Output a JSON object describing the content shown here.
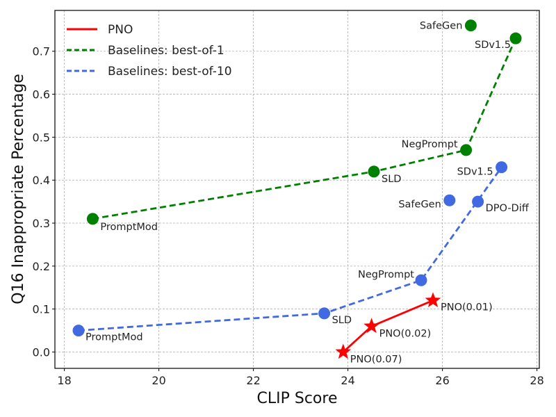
{
  "chart_data": {
    "type": "scatter",
    "xlabel": "CLIP Score",
    "ylabel": "Q16 Inappropriate Percentage",
    "xlim": [
      17.8,
      28.05
    ],
    "ylim": [
      -0.038,
      0.795
    ],
    "xticks": [
      18,
      20,
      22,
      24,
      26,
      28
    ],
    "xtick_labels": [
      "18",
      "20",
      "22",
      "24",
      "26",
      "28"
    ],
    "yticks": [
      0.0,
      0.1,
      0.2,
      0.3,
      0.4,
      0.5,
      0.6,
      0.7
    ],
    "ytick_labels": [
      "0.0",
      "0.1",
      "0.2",
      "0.3",
      "0.4",
      "0.5",
      "0.6",
      "0.7"
    ],
    "grid": true,
    "legend_position": "top-left",
    "series": [
      {
        "name": "PNO",
        "color": "#ff0000",
        "line_style": "solid",
        "marker": "star",
        "points": [
          {
            "x": 23.9,
            "y": 0.0,
            "label": "PNO(0.07)"
          },
          {
            "x": 24.5,
            "y": 0.06,
            "label": "PNO(0.02)"
          },
          {
            "x": 25.8,
            "y": 0.12,
            "label": "PNO(0.01)"
          }
        ]
      },
      {
        "name": "Baselines: best-of-1",
        "color": "#008000",
        "line_style": "dashed",
        "marker": "circle",
        "points": [
          {
            "x": 18.6,
            "y": 0.31,
            "label": "PromptMod"
          },
          {
            "x": 24.55,
            "y": 0.42,
            "label": "SLD"
          },
          {
            "x": 26.5,
            "y": 0.47,
            "label": "NegPrompt"
          },
          {
            "x": 27.55,
            "y": 0.73,
            "label": "SDv1.5"
          }
        ]
      },
      {
        "name": "Baselines: best-of-10",
        "color": "#4169e1",
        "line_style": "dashed",
        "marker": "circle",
        "points": [
          {
            "x": 18.3,
            "y": 0.05,
            "label": "PromptMod"
          },
          {
            "x": 23.5,
            "y": 0.09,
            "label": "SLD"
          },
          {
            "x": 25.55,
            "y": 0.167,
            "label": "NegPrompt"
          },
          {
            "x": 27.25,
            "y": 0.43,
            "label": "SDv1.5"
          }
        ]
      }
    ],
    "unconnected_points": [
      {
        "x": 26.6,
        "y": 0.76,
        "label": "SafeGen",
        "color": "#008000"
      },
      {
        "x": 26.15,
        "y": 0.353,
        "label": "SafeGen",
        "color": "#4169e1"
      },
      {
        "x": 26.75,
        "y": 0.35,
        "label": "DPO-Diff",
        "color": "#4169e1"
      }
    ]
  }
}
